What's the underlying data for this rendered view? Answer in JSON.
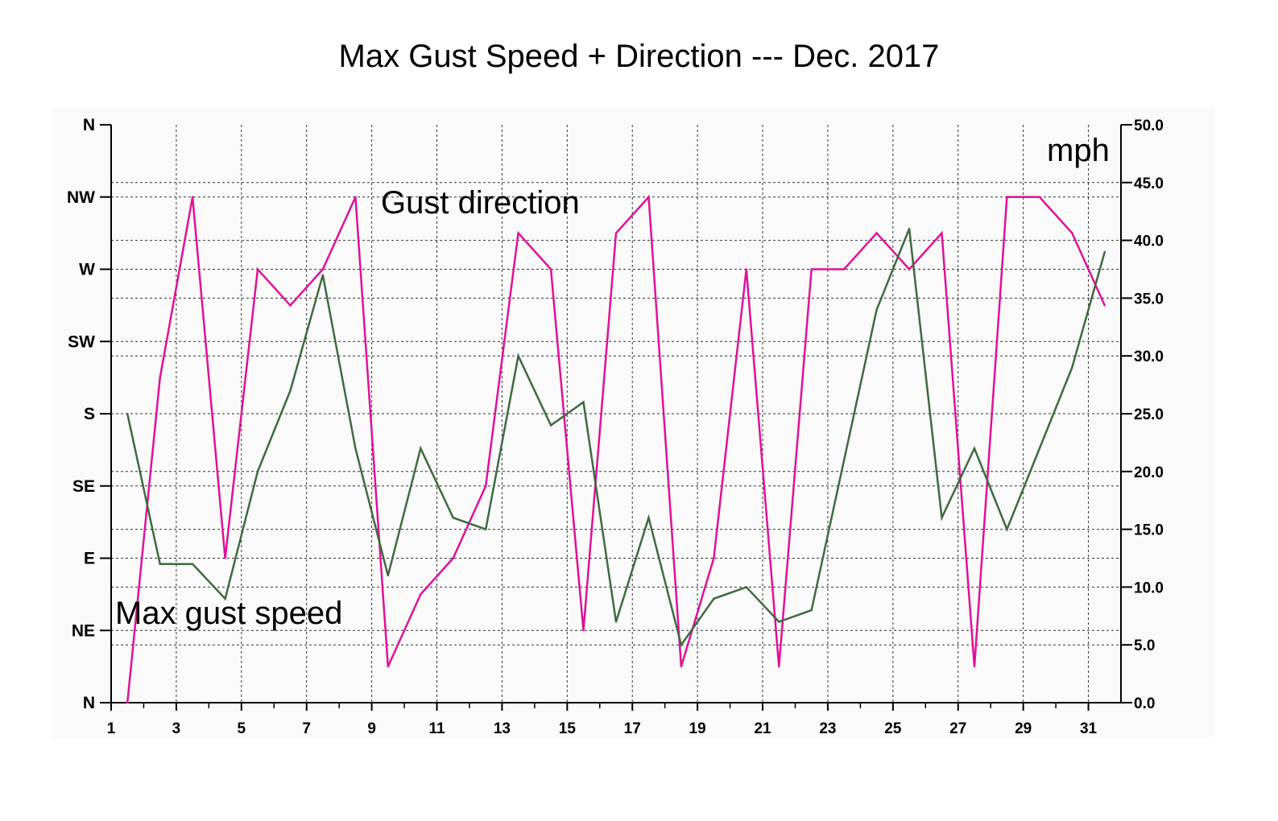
{
  "chart_data": {
    "type": "line",
    "title": "Max Gust Speed + Direction --- Dec. 2017",
    "unit_label": "mph",
    "x_tick_labels": [
      "1",
      "3",
      "5",
      "7",
      "9",
      "11",
      "13",
      "15",
      "17",
      "19",
      "21",
      "23",
      "25",
      "27",
      "29",
      "31"
    ],
    "left_axis_labels": [
      "N",
      "NW",
      "W",
      "SW",
      "S",
      "SE",
      "E",
      "NE",
      "N"
    ],
    "right_axis_labels": [
      "50.0",
      "45.0",
      "40.0",
      "35.0",
      "30.0",
      "25.0",
      "20.0",
      "15.0",
      "10.0",
      "5.0",
      "0.0"
    ],
    "right_ylim": [
      0,
      50
    ],
    "grid": true,
    "series": [
      {
        "name": "Gust direction",
        "axis": "left",
        "color": "#e0109a",
        "x": [
          1.5,
          2.5,
          3.5,
          4.5,
          5.5,
          6.5,
          7.5,
          8.5,
          9.5,
          10.5,
          11.5,
          12.5,
          13.5,
          14.5,
          15.5,
          16.5,
          17.5,
          18.5,
          19.5,
          20.5,
          21.5,
          22.5,
          23.5,
          24.5,
          25.5,
          26.5,
          27.5,
          28.5,
          29.5,
          30.5,
          31.5
        ],
        "values": [
          "N",
          "SSW",
          "NW",
          "E",
          "W",
          "WSW",
          "W",
          "NW",
          "NNE",
          "ENE",
          "E",
          "SE",
          "WNW",
          "W",
          "NE",
          "WNW",
          "NW",
          "NNE",
          "E",
          "W",
          "NNE",
          "W",
          "W",
          "WNW",
          "W",
          "WNW",
          "NNE",
          "NW",
          "NW",
          "WNW",
          "WSW"
        ]
      },
      {
        "name": "Max gust speed",
        "axis": "right",
        "color": "#3e6b3e",
        "x": [
          1.5,
          2.5,
          3.5,
          4.5,
          5.5,
          6.5,
          7.5,
          8.5,
          9.5,
          10.5,
          11.5,
          12.5,
          13.5,
          14.5,
          15.5,
          16.5,
          17.5,
          18.5,
          19.5,
          20.5,
          21.5,
          22.5,
          23.5,
          24.5,
          25.5,
          26.5,
          27.5,
          28.5,
          29.5,
          30.5,
          31.5
        ],
        "values": [
          25,
          12,
          12,
          9,
          20,
          27,
          37,
          22,
          11,
          22,
          16,
          15,
          30,
          24,
          26,
          7,
          16,
          5,
          9,
          10,
          7,
          8,
          21,
          34,
          41,
          16,
          22,
          15,
          22,
          29,
          39
        ]
      }
    ]
  }
}
